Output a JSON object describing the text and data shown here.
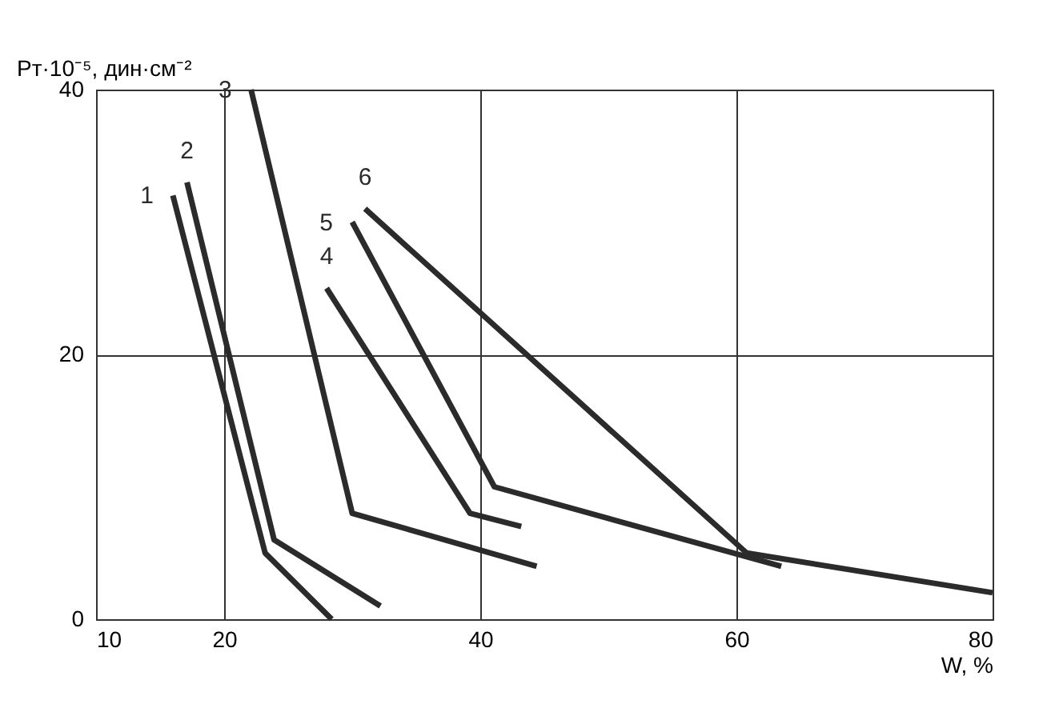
{
  "chart_data": {
    "type": "line",
    "xlabel": "W, %",
    "ylabel": "Pт·10⁻⁵, дин·см⁻²",
    "xlim": [
      10,
      80
    ],
    "xticks": [
      10,
      20,
      40,
      60,
      80
    ],
    "ylim": [
      0,
      40
    ],
    "yticks": [
      0,
      20,
      40
    ],
    "grid": true,
    "marker": "none",
    "line_style": "solid",
    "series": [
      {
        "name": "1",
        "color": "#2b2b2b",
        "x": [
          16,
          23.2,
          28.4
        ],
        "values": [
          32,
          5,
          0
        ]
      },
      {
        "name": "2",
        "color": "#2b2b2b",
        "x": [
          17.1,
          23.9,
          32.2
        ],
        "values": [
          33,
          6,
          1
        ]
      },
      {
        "name": "3",
        "color": "#2b2b2b",
        "x": [
          22.1,
          30,
          44.4
        ],
        "values": [
          40,
          8,
          4
        ]
      },
      {
        "name": "4",
        "color": "#2b2b2b",
        "x": [
          28,
          39.2,
          43.2
        ],
        "values": [
          25,
          8,
          7
        ]
      },
      {
        "name": "5",
        "color": "#2b2b2b",
        "x": [
          30,
          41.1,
          63.5
        ],
        "values": [
          30,
          10,
          4
        ]
      },
      {
        "name": "6",
        "color": "#2b2b2b",
        "x": [
          31,
          60.8,
          80
        ],
        "values": [
          31,
          5,
          2
        ]
      }
    ]
  }
}
